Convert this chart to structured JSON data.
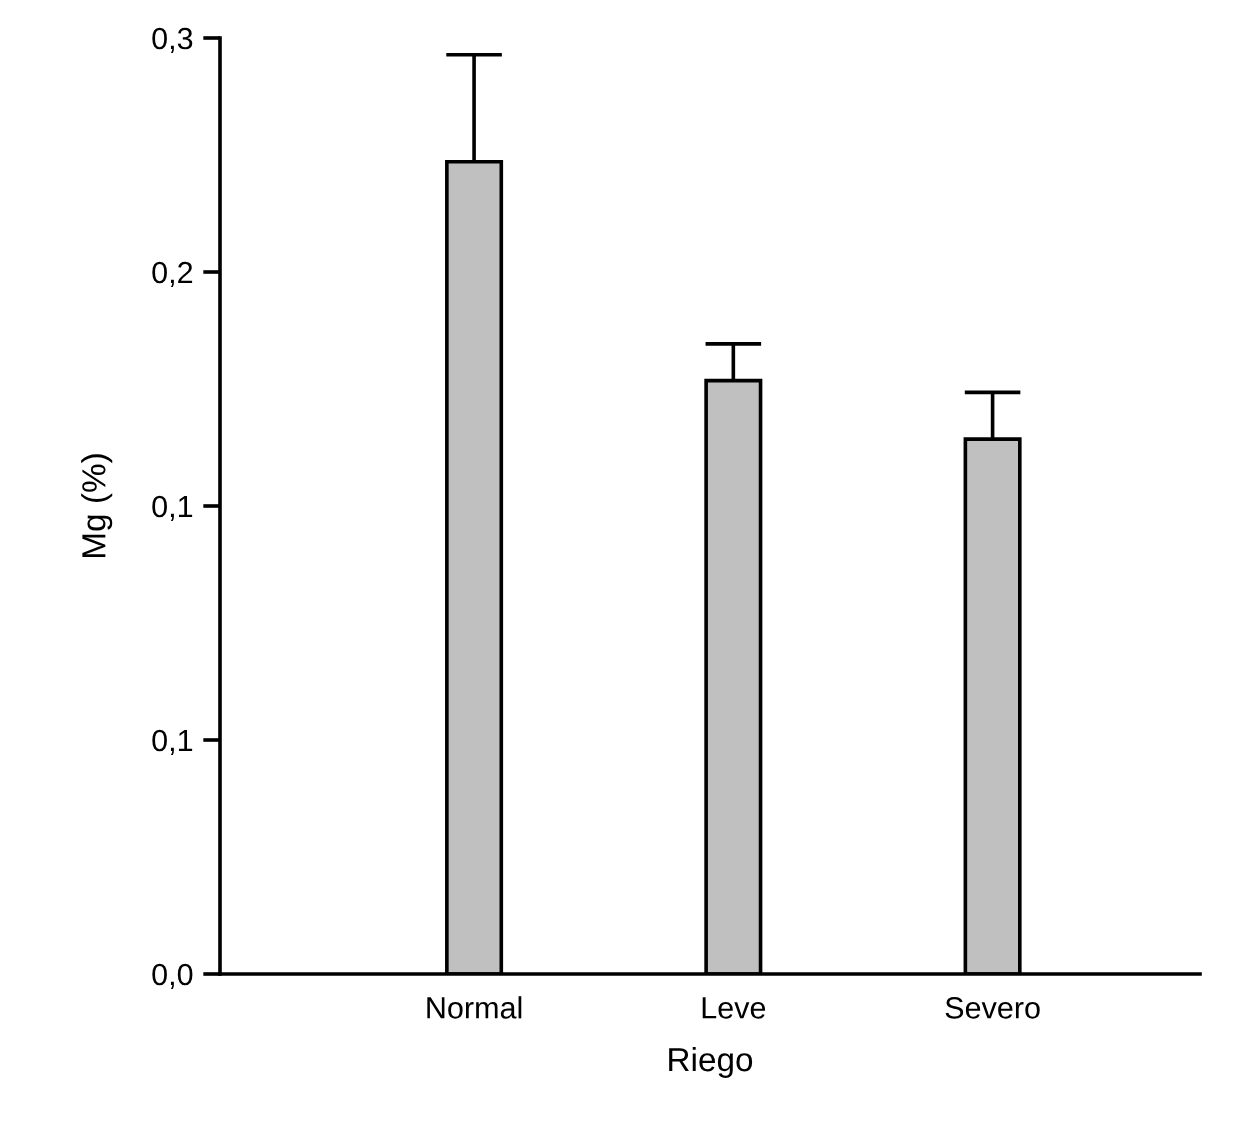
{
  "chart_data": {
    "type": "bar",
    "xlabel": "Riego",
    "ylabel": "Mg (%)",
    "categories": [
      "Normal",
      "Leve",
      "Severo"
    ],
    "values": [
      0.243,
      0.1775,
      0.16
    ],
    "errors": [
      0.032,
      0.011,
      0.014
    ],
    "color": "#c0c0c0",
    "ylim": [
      0,
      0.28
    ],
    "yticks": [
      {
        "value": 0,
        "label": "0,0"
      },
      {
        "value": 0.07,
        "label": "0,1"
      },
      {
        "value": 0.14,
        "label": "0,1"
      },
      {
        "value": 0.21,
        "label": "0,2"
      },
      {
        "value": 0.28,
        "label": "0,3"
      }
    ],
    "grid": false
  }
}
